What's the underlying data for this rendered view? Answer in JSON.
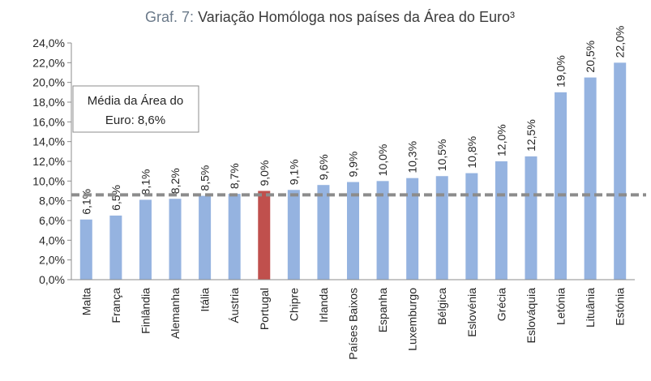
{
  "chart_data": {
    "type": "bar",
    "title_prefix": "Graf. 7: ",
    "title": "Variação Homóloga nos países da Área do Euro³",
    "xlabel": "",
    "ylabel": "",
    "ylim": [
      0,
      24
    ],
    "ytick_step": 2,
    "ytick_labels": [
      "0,0%",
      "2,0%",
      "4,0%",
      "6,0%",
      "8,0%",
      "10,0%",
      "12,0%",
      "14,0%",
      "16,0%",
      "18,0%",
      "20,0%",
      "22,0%",
      "24,0%"
    ],
    "grid": false,
    "categories": [
      "Malta",
      "França",
      "Finlândia",
      "Alemanha",
      "Itália",
      "Áustria",
      "Portugal",
      "Chipre",
      "Irlanda",
      "Países Baixos",
      "Espanha",
      "Luxemburgo",
      "Bélgica",
      "Eslovénia",
      "Grécia",
      "Eslováquia",
      "Letónia",
      "Lituânia",
      "Estónia"
    ],
    "values": [
      6.1,
      6.5,
      8.1,
      8.2,
      8.5,
      8.7,
      9.0,
      9.1,
      9.6,
      9.9,
      10.0,
      10.3,
      10.5,
      10.8,
      12.0,
      12.5,
      19.0,
      20.5,
      22.0
    ],
    "value_labels": [
      "6,1%",
      "6,5%",
      "8,1%",
      "8,2%",
      "8,5%",
      "8,7%",
      "9,0%",
      "9,1%",
      "9,6%",
      "9,9%",
      "10,0%",
      "10,3%",
      "10,5%",
      "10,8%",
      "12,0%",
      "12,5%",
      "19,0%",
      "20,5%",
      "22,0%"
    ],
    "highlight_index": 6,
    "bar_color": "#95b3e0",
    "highlight_color": "#c0504d",
    "reference_line": {
      "value": 8.6,
      "color": "#8c8c8c"
    },
    "annotation": {
      "line1": "Média da Área do",
      "line2": "Euro: 8,6%"
    }
  }
}
